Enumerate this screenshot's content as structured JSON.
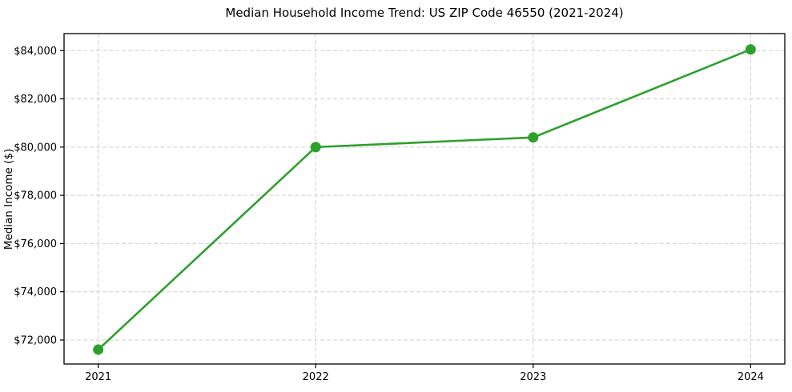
{
  "figure": {
    "background": "#ffffff"
  },
  "chart_data": {
    "type": "line",
    "title": "Median Household Income Trend: US ZIP Code 46550 (2021-2024)",
    "xlabel": "",
    "ylabel": "Median Income ($)",
    "x": [
      2021,
      2022,
      2023,
      2024
    ],
    "x_tick_labels": [
      "2021",
      "2022",
      "2023",
      "2024"
    ],
    "values": [
      71600,
      80000,
      80400,
      84050
    ],
    "y_tick_values": [
      72000,
      74000,
      76000,
      78000,
      80000,
      82000,
      84000
    ],
    "y_tick_labels": [
      "$72,000",
      "$74,000",
      "$76,000",
      "$78,000",
      "$80,000",
      "$82,000",
      "$84,000"
    ],
    "xlim": [
      2020.843,
      2024.157
    ],
    "ylim": [
      71004,
      84707
    ],
    "grid": true,
    "grid_style": "dashed",
    "legend": "none",
    "marker": "circle",
    "colors": {
      "line": "#2ca02c",
      "marker": "#2ca02c",
      "grid": "#cfcfcf",
      "spine": "#000000",
      "text": "#000000",
      "background": "#ffffff"
    }
  }
}
